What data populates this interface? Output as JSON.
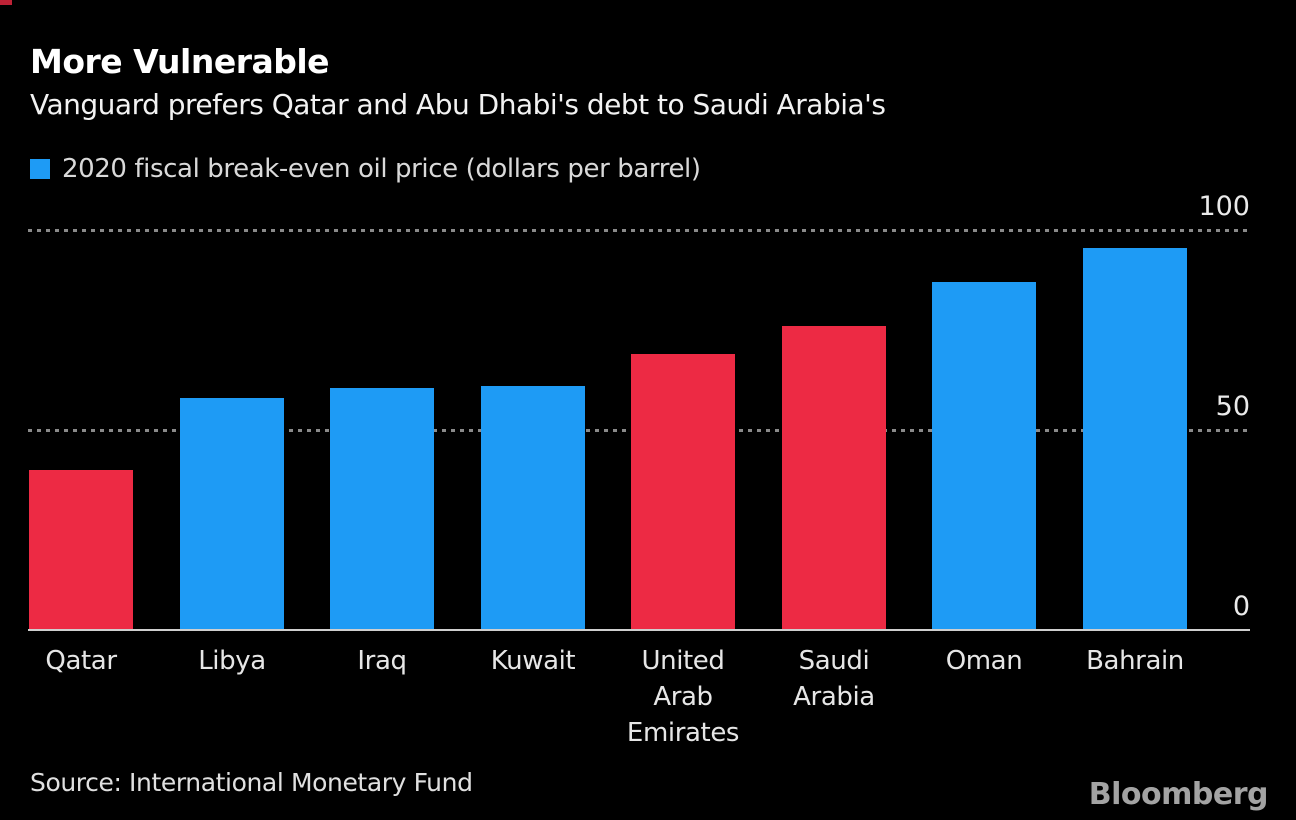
{
  "header": {
    "title": "More Vulnerable",
    "subtitle": "Vanguard prefers Qatar and Abu Dhabi's debt to Saudi Arabia's"
  },
  "legend": {
    "label": "2020 fiscal break-even oil price (dollars per barrel)"
  },
  "chart_data": {
    "type": "bar",
    "title": "More Vulnerable",
    "subtitle": "Vanguard prefers Qatar and Abu Dhabi's debt to Saudi Arabia's",
    "series_label": "2020 fiscal break-even oil price (dollars per barrel)",
    "categories": [
      "Qatar",
      "Libya",
      "Iraq",
      "Kuwait",
      "United Arab Emirates",
      "Saudi Arabia",
      "Oman",
      "Bahrain"
    ],
    "tick_lines": [
      "Qatar",
      "Libya",
      "Iraq",
      "Kuwait",
      "United\nArab\nEmirates",
      "Saudi\nArabia",
      "Oman",
      "Bahrain"
    ],
    "values": [
      40,
      58,
      60.5,
      61,
      69,
      76,
      87,
      95.5
    ],
    "bar_colors": [
      "#ed2a44",
      "#1e9bf5",
      "#1e9bf5",
      "#1e9bf5",
      "#ed2a44",
      "#ed2a44",
      "#1e9bf5",
      "#1e9bf5"
    ],
    "ylim": [
      0,
      100
    ],
    "yticks": [
      0,
      50,
      100
    ],
    "ytick_labels": [
      "0",
      "50",
      "100"
    ],
    "grid": "dotted horizontal gridlines at 50 and 100, y labels on right",
    "legend_position": "top-left"
  },
  "footer": {
    "source": "Source: International Monetary Fund",
    "brand": "Bloomberg"
  },
  "colors": {
    "background": "#000000",
    "red": "#ed2a44",
    "blue": "#1e9bf5",
    "grid": "#8a8a8a",
    "axis": "#cfcfcf",
    "title_text": "#ffffff",
    "muted_text": "#d9d9d9",
    "brand_text": "#a3a3a3"
  }
}
